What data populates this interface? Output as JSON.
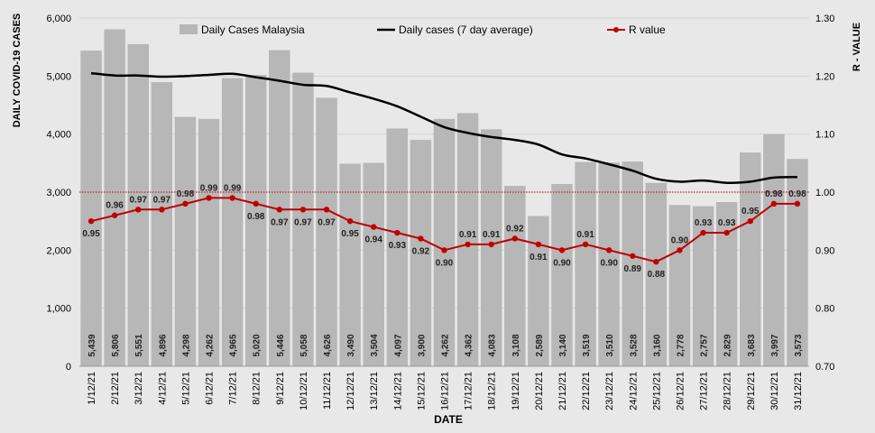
{
  "chart_data": {
    "type": "bar",
    "title": "",
    "xlabel": "DATE",
    "ylabel": "DAILY COVID-19 CASES",
    "y2label": "R - VALUE",
    "ylim": [
      0,
      6000
    ],
    "y2lim": [
      0.7,
      1.3
    ],
    "yticks": [
      "0",
      "1,000",
      "2,000",
      "3,000",
      "4,000",
      "5,000",
      "6,000"
    ],
    "y2ticks": [
      "0.70",
      "0.80",
      "0.90",
      "1.00",
      "1.10",
      "1.20",
      "1.30"
    ],
    "reference_line": {
      "axis": "y2",
      "value": 1.0,
      "color": "#c00000",
      "style": "dotted"
    },
    "legend_position": "top",
    "categories": [
      "1/12/21",
      "2/12/21",
      "3/12/21",
      "4/12/21",
      "5/12/21",
      "6/12/21",
      "7/12/21",
      "8/12/21",
      "9/12/21",
      "10/12/21",
      "11/12/21",
      "12/12/21",
      "13/12/21",
      "14/12/21",
      "15/12/21",
      "16/12/21",
      "17/12/21",
      "18/12/21",
      "19/12/21",
      "20/12/21",
      "21/12/21",
      "22/12/21",
      "23/12/21",
      "24/12/21",
      "25/12/21",
      "26/12/21",
      "27/12/21",
      "28/12/21",
      "29/12/21",
      "30/12/21",
      "31/12/21"
    ],
    "series": [
      {
        "name": "Daily Cases Malaysia",
        "type": "bar",
        "axis": "y",
        "color": "#b7b7b7",
        "values": [
          5439,
          5806,
          5551,
          4896,
          4298,
          4262,
          4965,
          5020,
          5446,
          5058,
          4626,
          3490,
          3504,
          4097,
          3900,
          4262,
          4362,
          4083,
          3108,
          2589,
          3140,
          3519,
          3510,
          3528,
          3160,
          2778,
          2757,
          2829,
          3683,
          3997,
          3573
        ],
        "labels": [
          "5,439",
          "5,806",
          "5,551",
          "4,896",
          "4,298",
          "4,262",
          "4,965",
          "5,020",
          "5,446",
          "5,058",
          "4,626",
          "3,490",
          "3,504",
          "4,097",
          "3,900",
          "4,262",
          "4,362",
          "4,083",
          "3,108",
          "2,589",
          "3,140",
          "3,519",
          "3,510",
          "3,528",
          "3,160",
          "2,778",
          "2,757",
          "2,829",
          "3,683",
          "3,997",
          "3,573"
        ]
      },
      {
        "name": "Daily cases (7 day average)",
        "type": "line",
        "axis": "y",
        "color": "#000000",
        "values": [
          5050,
          5010,
          5010,
          4990,
          5000,
          5020,
          5040,
          4980,
          4920,
          4850,
          4830,
          4720,
          4610,
          4480,
          4300,
          4120,
          4020,
          3950,
          3900,
          3820,
          3650,
          3580,
          3480,
          3370,
          3230,
          3180,
          3200,
          3160,
          3180,
          3250,
          3260
        ]
      },
      {
        "name": "R value",
        "type": "line",
        "axis": "y2",
        "color": "#c00000",
        "values": [
          0.95,
          0.96,
          0.97,
          0.97,
          0.98,
          0.99,
          0.99,
          0.98,
          0.97,
          0.97,
          0.97,
          0.95,
          0.94,
          0.93,
          0.92,
          0.9,
          0.91,
          0.91,
          0.92,
          0.91,
          0.9,
          0.91,
          0.9,
          0.89,
          0.88,
          0.9,
          0.93,
          0.93,
          0.95,
          0.98,
          0.98
        ],
        "labels": [
          "0.95",
          "0.96",
          "0.97",
          "0.97",
          "0.98",
          "0.99",
          "0.99",
          "0.98",
          "0.97",
          "0.97",
          "0.97",
          "0.95",
          "0.94",
          "0.93",
          "0.92",
          "0.90",
          "0.91",
          "0.91",
          "0.92",
          "0.91",
          "0.90",
          "0.91",
          "0.90",
          "0.89",
          "0.88",
          "0.90",
          "0.93",
          "0.93",
          "0.95",
          "0.98",
          "0.98"
        ]
      }
    ]
  }
}
